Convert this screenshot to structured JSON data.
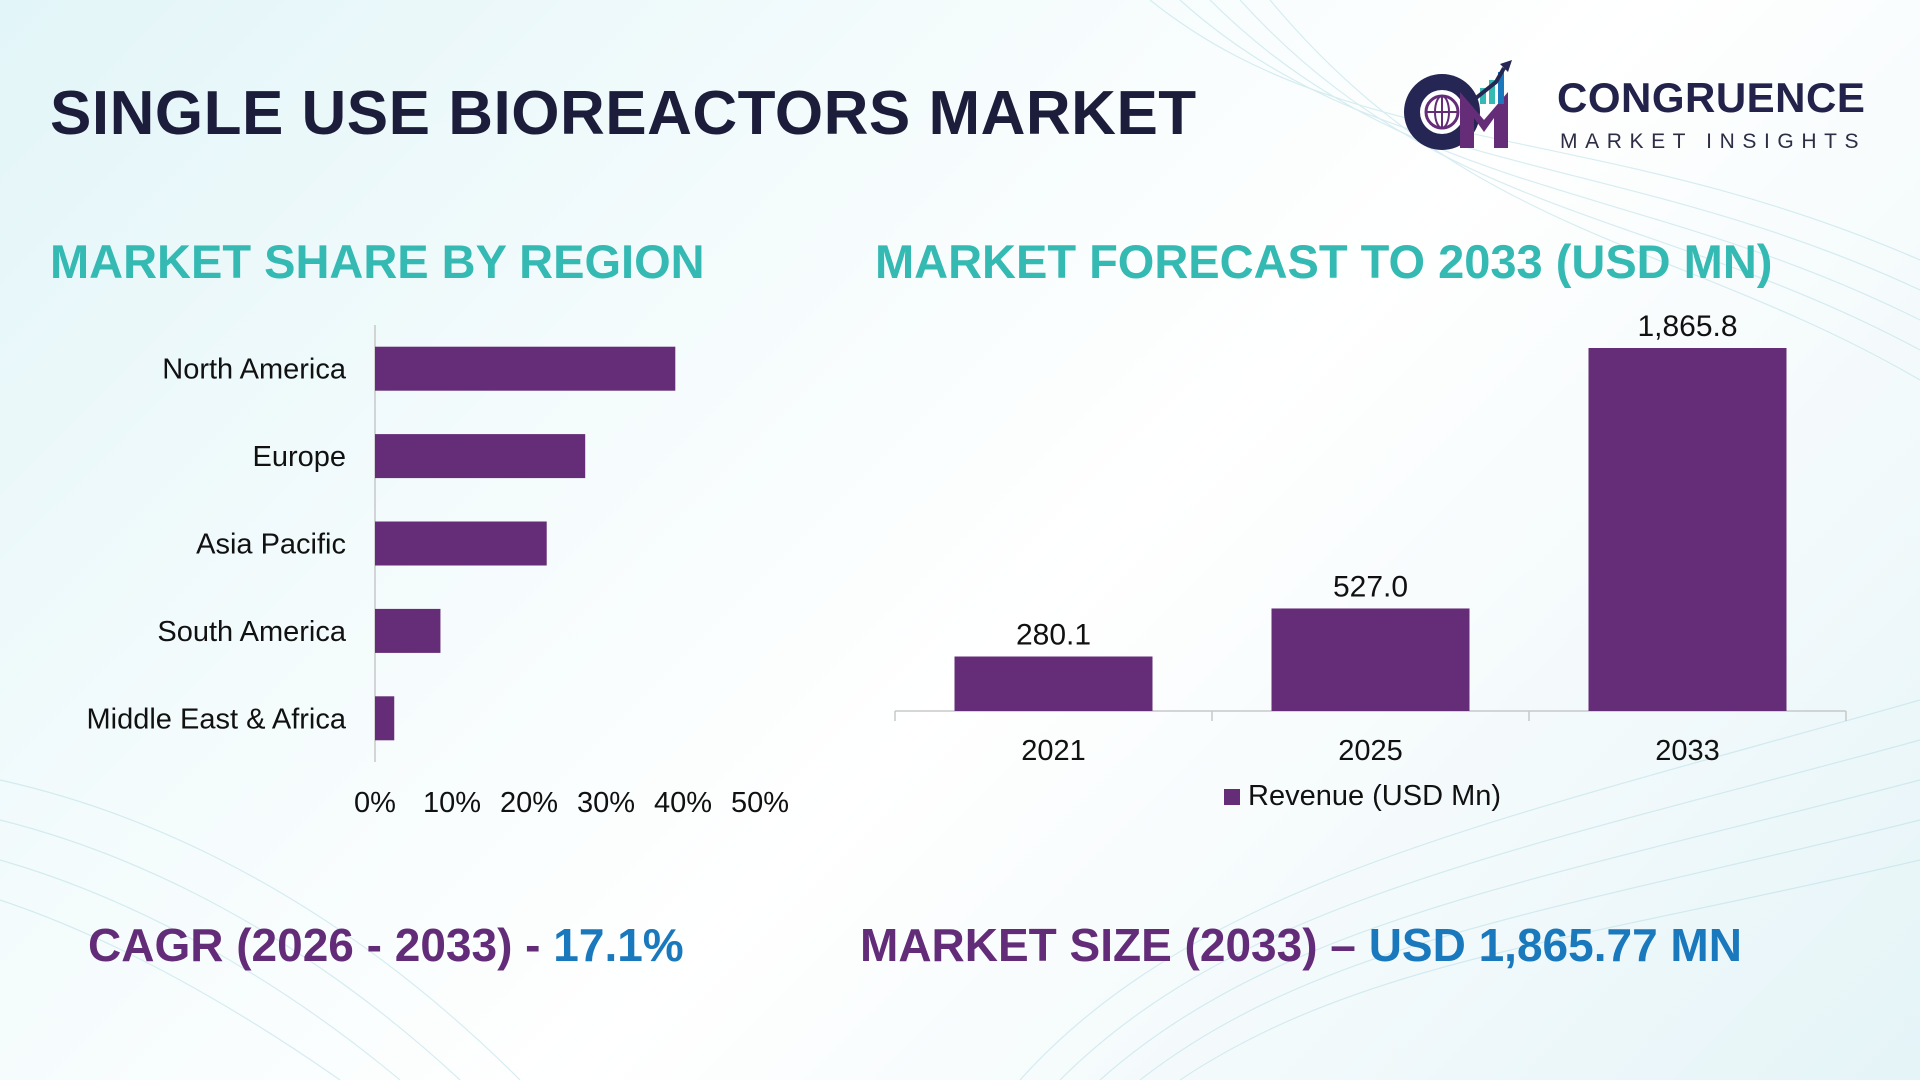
{
  "header": {
    "title": "SINGLE USE BIOREACTORS MARKET"
  },
  "logo": {
    "name": "CONGRUENCE",
    "subtitle": "MARKET INSIGHTS",
    "icon": "cmi-logo-icon"
  },
  "sections": {
    "left_title": "MARKET SHARE BY REGION",
    "right_title": "MARKET FORECAST TO 2033 (USD MN)"
  },
  "kpis": {
    "cagr_label": "CAGR (2026 - 2033) - ",
    "cagr_value": "17.1%",
    "size_label": "MARKET SIZE (2033) – ",
    "size_value": "USD 1,865.77 MN"
  },
  "colors": {
    "bar": "#652d78",
    "section_title": "#34b9b3",
    "kpi_label": "#632c78",
    "kpi_value": "#1a78bc"
  },
  "chart_data": [
    {
      "type": "bar",
      "orientation": "horizontal",
      "categories": [
        "North America",
        "Europe",
        "Asia Pacific",
        "South America",
        "Middle East & Africa"
      ],
      "values": [
        39,
        27.3,
        22.3,
        8.5,
        2.5
      ],
      "xlim": [
        0,
        50
      ],
      "xticks": [
        "0%",
        "10%",
        "20%",
        "30%",
        "40%",
        "50%"
      ],
      "grid": false,
      "legend": "none"
    },
    {
      "type": "bar",
      "orientation": "vertical",
      "categories": [
        "2021",
        "2025",
        "2033"
      ],
      "series": [
        {
          "name": "Revenue (USD Mn)",
          "values": [
            280.1,
            527.0,
            1865.8
          ]
        }
      ],
      "data_labels": [
        "280.1",
        "527.0",
        "1,865.8"
      ],
      "ylim": [
        0,
        1865.8
      ],
      "grid": false,
      "legend": "bottom"
    }
  ]
}
